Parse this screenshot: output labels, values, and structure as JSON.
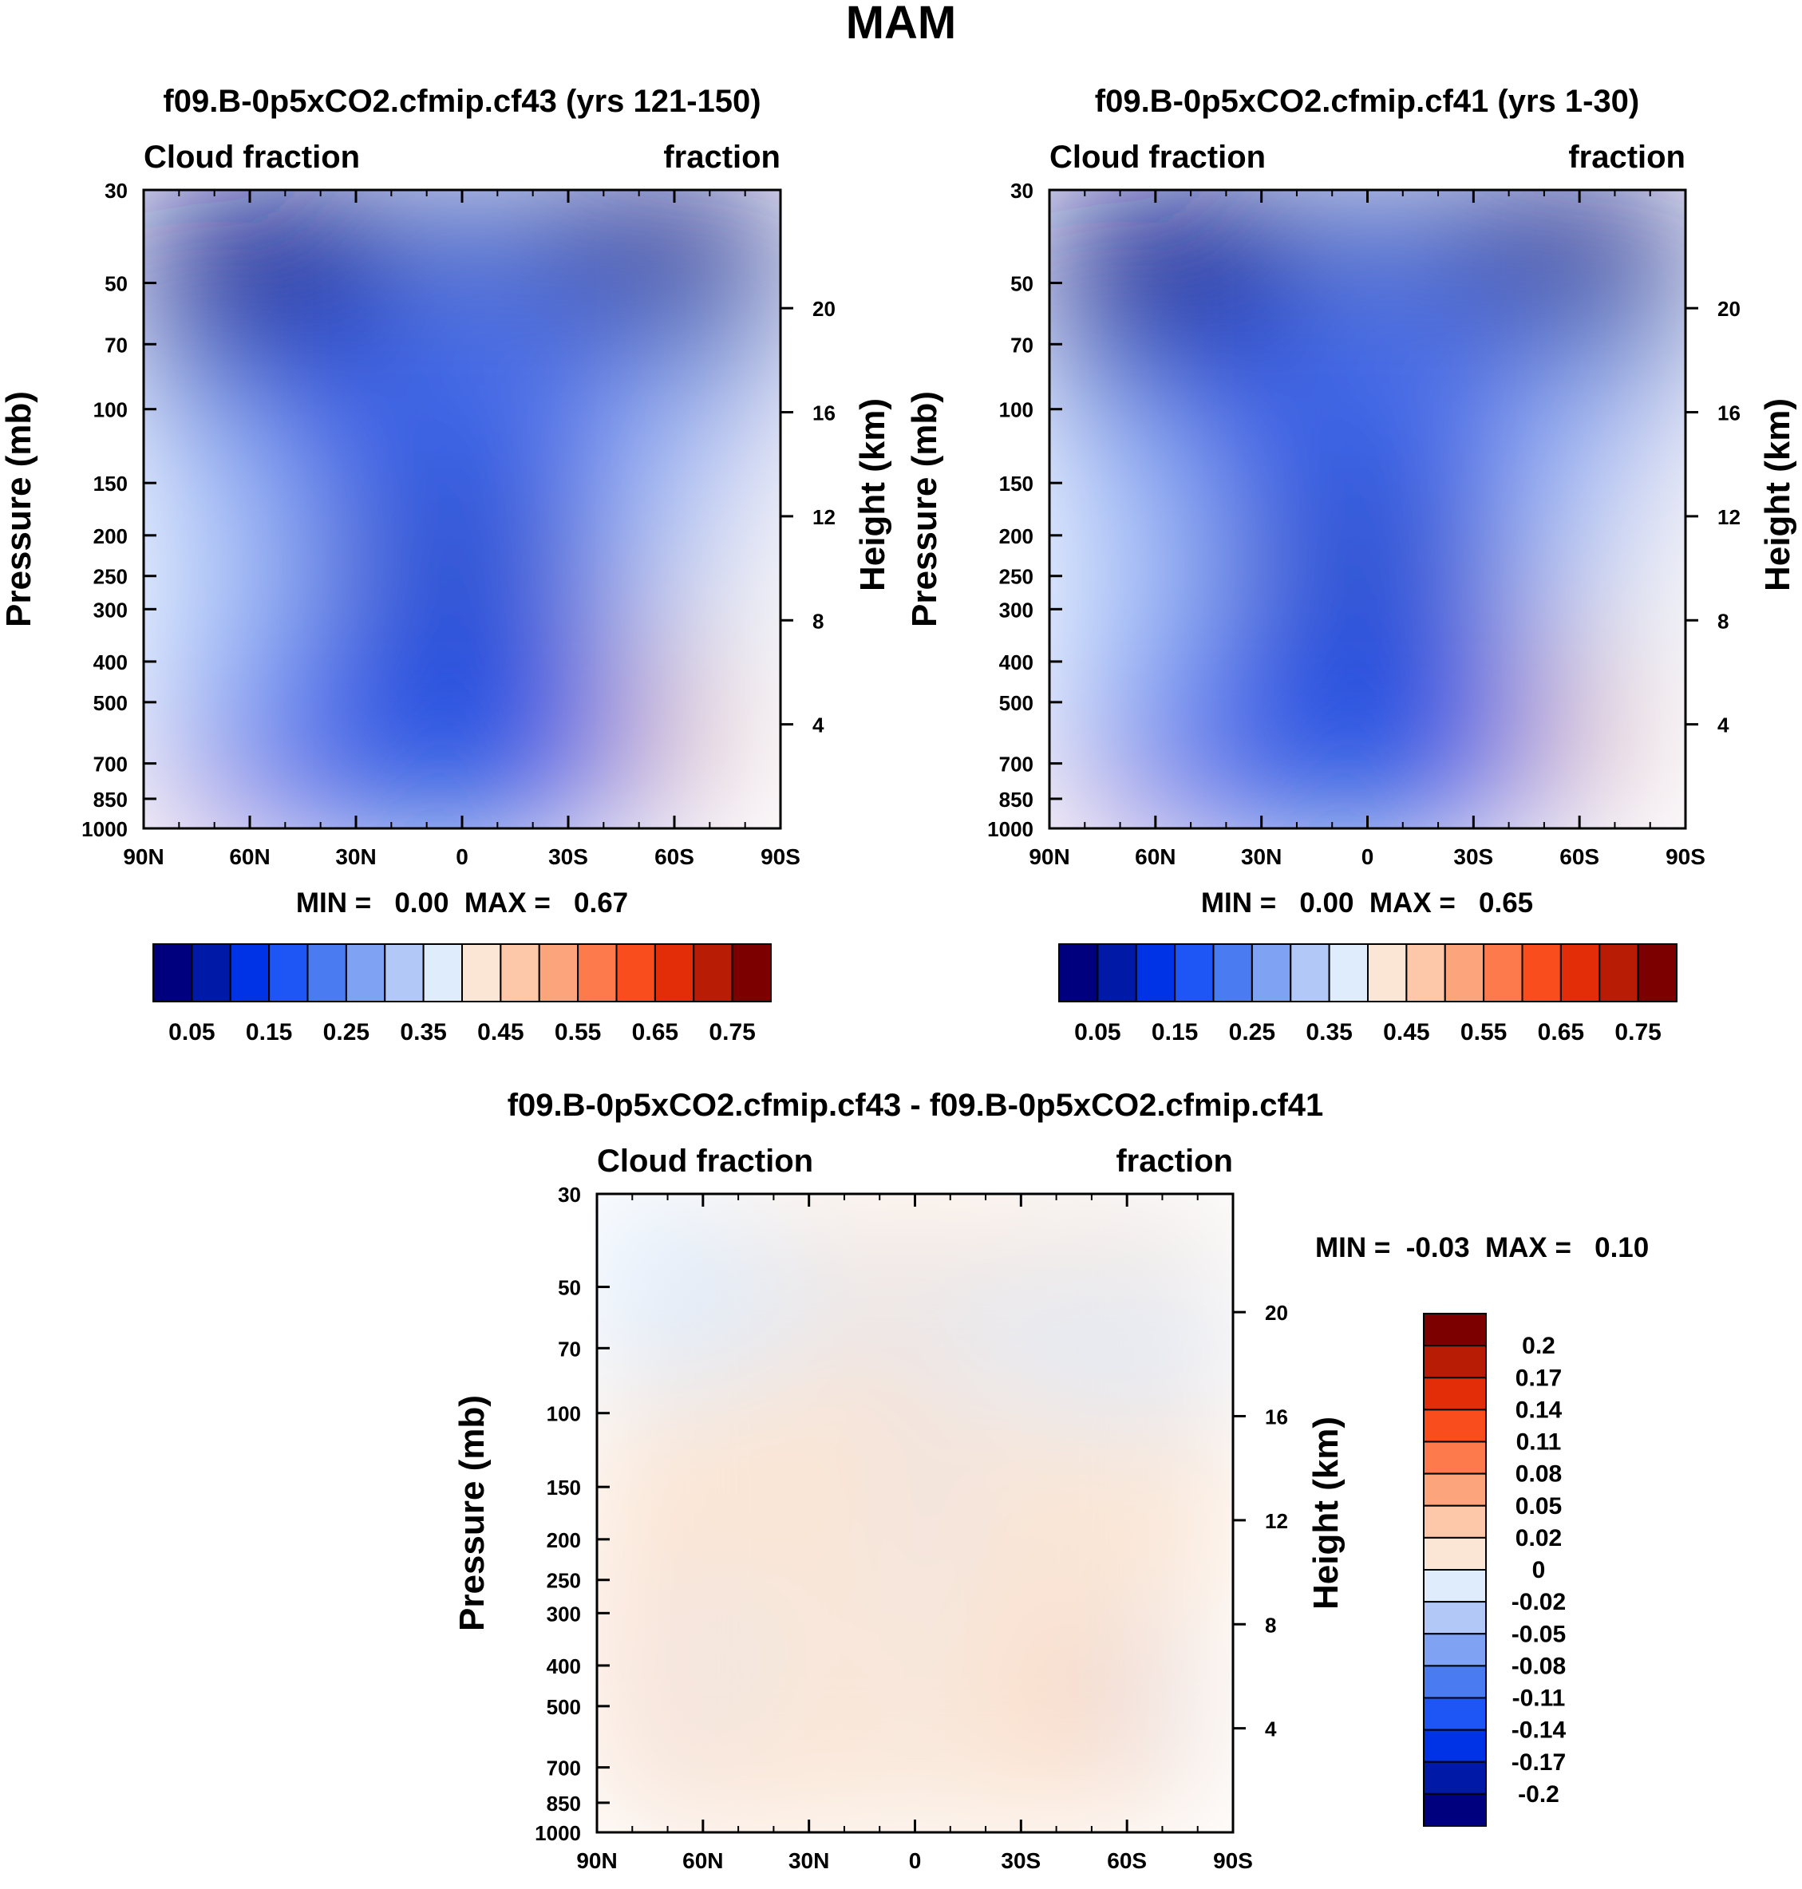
{
  "figure_title": "MAM",
  "colors": {
    "cf_levels": [
      "#00007f",
      "#0019a6",
      "#0032e6",
      "#1e56f5",
      "#4b7bf0",
      "#7fa2f2",
      "#b2c9f8",
      "#dfecfb",
      "#fbe6d5",
      "#fdc8aa",
      "#fca47c",
      "#fc7a4b",
      "#fa4d1e",
      "#e32d08",
      "#b81c05",
      "#7d0000"
    ],
    "diff_levels": [
      "#00007f",
      "#0019a6",
      "#0032e6",
      "#1e56f5",
      "#4b7bf0",
      "#7fa2f2",
      "#b2c9f8",
      "#dfecfb",
      "#fbe6d5",
      "#fdc8aa",
      "#fca47c",
      "#fc7a4b",
      "#fa4d1e",
      "#e32d08",
      "#b81c05",
      "#7d0000"
    ]
  },
  "chart_data": [
    {
      "id": "p1",
      "type": "heatmap",
      "title": "f09.B-0p5xCO2.cfmip.cf43 (yrs 121-150)",
      "left_label": "Cloud fraction",
      "right_label": "fraction",
      "xlabel": "",
      "ylabel": "Pressure (mb)",
      "y2label": "Height (km)",
      "x_ticks": [
        "90N",
        "60N",
        "30N",
        "0",
        "30S",
        "60S",
        "90S"
      ],
      "y_ticks": [
        "30",
        "50",
        "70",
        "100",
        "150",
        "200",
        "250",
        "300",
        "400",
        "500",
        "700",
        "850",
        "1000"
      ],
      "y_tick_values": [
        30,
        50,
        70,
        100,
        150,
        200,
        250,
        300,
        400,
        500,
        700,
        850,
        1000
      ],
      "y2_ticks": [
        "20",
        "16",
        "12",
        "8",
        "4"
      ],
      "y2_tick_values": [
        20,
        16,
        12,
        8,
        4
      ],
      "xlim": [
        90,
        -90
      ],
      "ylim": [
        1000,
        30
      ],
      "stats": "MIN =   0.00  MAX =   0.67",
      "colorbar_ticks": [
        "0.05",
        "0.15",
        "0.25",
        "0.35",
        "0.45",
        "0.55",
        "0.65",
        "0.75"
      ],
      "colorbar_tick_values": [
        0.05,
        0.15,
        0.25,
        0.35,
        0.45,
        0.55,
        0.65,
        0.75
      ],
      "colorbar_levels": [
        0.05,
        0.1,
        0.15,
        0.2,
        0.25,
        0.3,
        0.35,
        0.4,
        0.45,
        0.5,
        0.55,
        0.6,
        0.65,
        0.7,
        0.75
      ]
    },
    {
      "id": "p2",
      "type": "heatmap",
      "title": "f09.B-0p5xCO2.cfmip.cf41 (yrs 1-30)",
      "left_label": "Cloud fraction",
      "right_label": "fraction",
      "xlabel": "",
      "ylabel": "Pressure (mb)",
      "y2label": "Height (km)",
      "x_ticks": [
        "90N",
        "60N",
        "30N",
        "0",
        "30S",
        "60S",
        "90S"
      ],
      "y_ticks": [
        "30",
        "50",
        "70",
        "100",
        "150",
        "200",
        "250",
        "300",
        "400",
        "500",
        "700",
        "850",
        "1000"
      ],
      "y_tick_values": [
        30,
        50,
        70,
        100,
        150,
        200,
        250,
        300,
        400,
        500,
        700,
        850,
        1000
      ],
      "y2_ticks": [
        "20",
        "16",
        "12",
        "8",
        "4"
      ],
      "y2_tick_values": [
        20,
        16,
        12,
        8,
        4
      ],
      "xlim": [
        90,
        -90
      ],
      "ylim": [
        1000,
        30
      ],
      "stats": "MIN =   0.00  MAX =   0.65",
      "colorbar_ticks": [
        "0.05",
        "0.15",
        "0.25",
        "0.35",
        "0.45",
        "0.55",
        "0.65",
        "0.75"
      ],
      "colorbar_tick_values": [
        0.05,
        0.15,
        0.25,
        0.35,
        0.45,
        0.55,
        0.65,
        0.75
      ],
      "colorbar_levels": [
        0.05,
        0.1,
        0.15,
        0.2,
        0.25,
        0.3,
        0.35,
        0.4,
        0.45,
        0.5,
        0.55,
        0.6,
        0.65,
        0.7,
        0.75
      ]
    },
    {
      "id": "p3",
      "type": "heatmap",
      "title": "f09.B-0p5xCO2.cfmip.cf43 - f09.B-0p5xCO2.cfmip.cf41",
      "left_label": "Cloud fraction",
      "right_label": "fraction",
      "xlabel": "",
      "ylabel": "Pressure (mb)",
      "y2label": "Height (km)",
      "x_ticks": [
        "90N",
        "60N",
        "30N",
        "0",
        "30S",
        "60S",
        "90S"
      ],
      "y_ticks": [
        "30",
        "50",
        "70",
        "100",
        "150",
        "200",
        "250",
        "300",
        "400",
        "500",
        "700",
        "850",
        "1000"
      ],
      "y_tick_values": [
        30,
        50,
        70,
        100,
        150,
        200,
        250,
        300,
        400,
        500,
        700,
        850,
        1000
      ],
      "y2_ticks": [
        "20",
        "16",
        "12",
        "8",
        "4"
      ],
      "y2_tick_values": [
        20,
        16,
        12,
        8,
        4
      ],
      "xlim": [
        90,
        -90
      ],
      "ylim": [
        1000,
        30
      ],
      "stats": "MIN =  -0.03  MAX =   0.10",
      "colorbar_ticks": [
        "0.2",
        "0.17",
        "0.14",
        "0.11",
        "0.08",
        "0.05",
        "0.02",
        "0",
        "-0.02",
        "-0.05",
        "-0.08",
        "-0.11",
        "-0.14",
        "-0.17",
        "-0.2"
      ],
      "colorbar_tick_values": [
        0.2,
        0.17,
        0.14,
        0.11,
        0.08,
        0.05,
        0.02,
        0,
        -0.02,
        -0.05,
        -0.08,
        -0.11,
        -0.14,
        -0.17,
        -0.2
      ]
    }
  ]
}
